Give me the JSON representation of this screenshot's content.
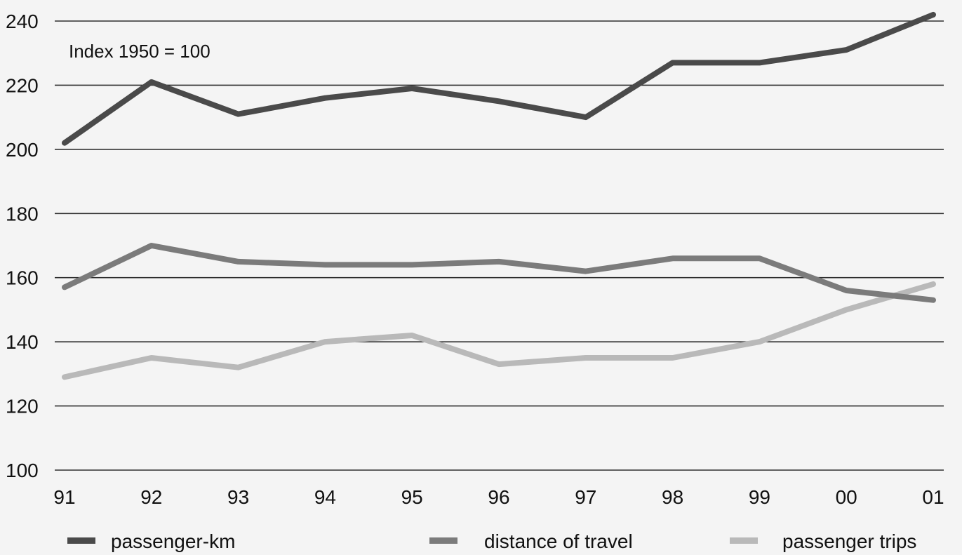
{
  "chart_data": {
    "type": "line",
    "title": "",
    "xlabel": "",
    "ylabel": "",
    "annotation": "Index 1950 = 100",
    "x": [
      "91",
      "92",
      "93",
      "94",
      "95",
      "96",
      "97",
      "98",
      "99",
      "00",
      "01"
    ],
    "ylim": [
      100,
      240
    ],
    "yticks": [
      100,
      120,
      140,
      160,
      180,
      200,
      220,
      240
    ],
    "grid": true,
    "legend_position": "bottom",
    "series": [
      {
        "name": "passenger-km",
        "color": "#4a4a4a",
        "values": [
          202,
          221,
          211,
          216,
          219,
          215,
          210,
          227,
          227,
          231,
          242
        ]
      },
      {
        "name": "distance of travel",
        "color": "#7b7b7b",
        "values": [
          157,
          170,
          165,
          164,
          164,
          165,
          162,
          166,
          166,
          156,
          153
        ]
      },
      {
        "name": "passenger trips",
        "color": "#b9b9b9",
        "values": [
          129,
          135,
          132,
          140,
          142,
          133,
          135,
          135,
          140,
          150,
          158
        ]
      }
    ]
  }
}
